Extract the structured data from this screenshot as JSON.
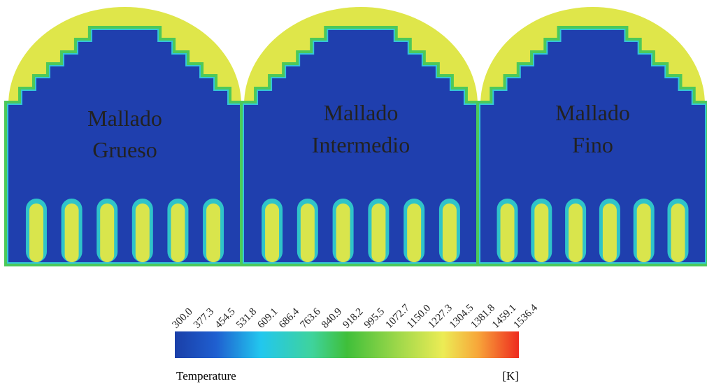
{
  "panels": [
    {
      "lines": [
        "Mallado",
        "Grueso"
      ]
    },
    {
      "lines": [
        "Mallado",
        "Intermedio"
      ]
    },
    {
      "lines": [
        "Mallado",
        "Fino"
      ]
    }
  ],
  "colorbar": {
    "ticks": [
      "300.0",
      "377.3",
      "454.5",
      "531.8",
      "609.1",
      "686.4",
      "763.6",
      "840.9",
      "918.2",
      "995.5",
      "1072.7",
      "1150.0",
      "1227.3",
      "1304.5",
      "1381.8",
      "1459.1",
      "1536.4"
    ],
    "label": "Temperature",
    "unit": "[K]"
  }
}
